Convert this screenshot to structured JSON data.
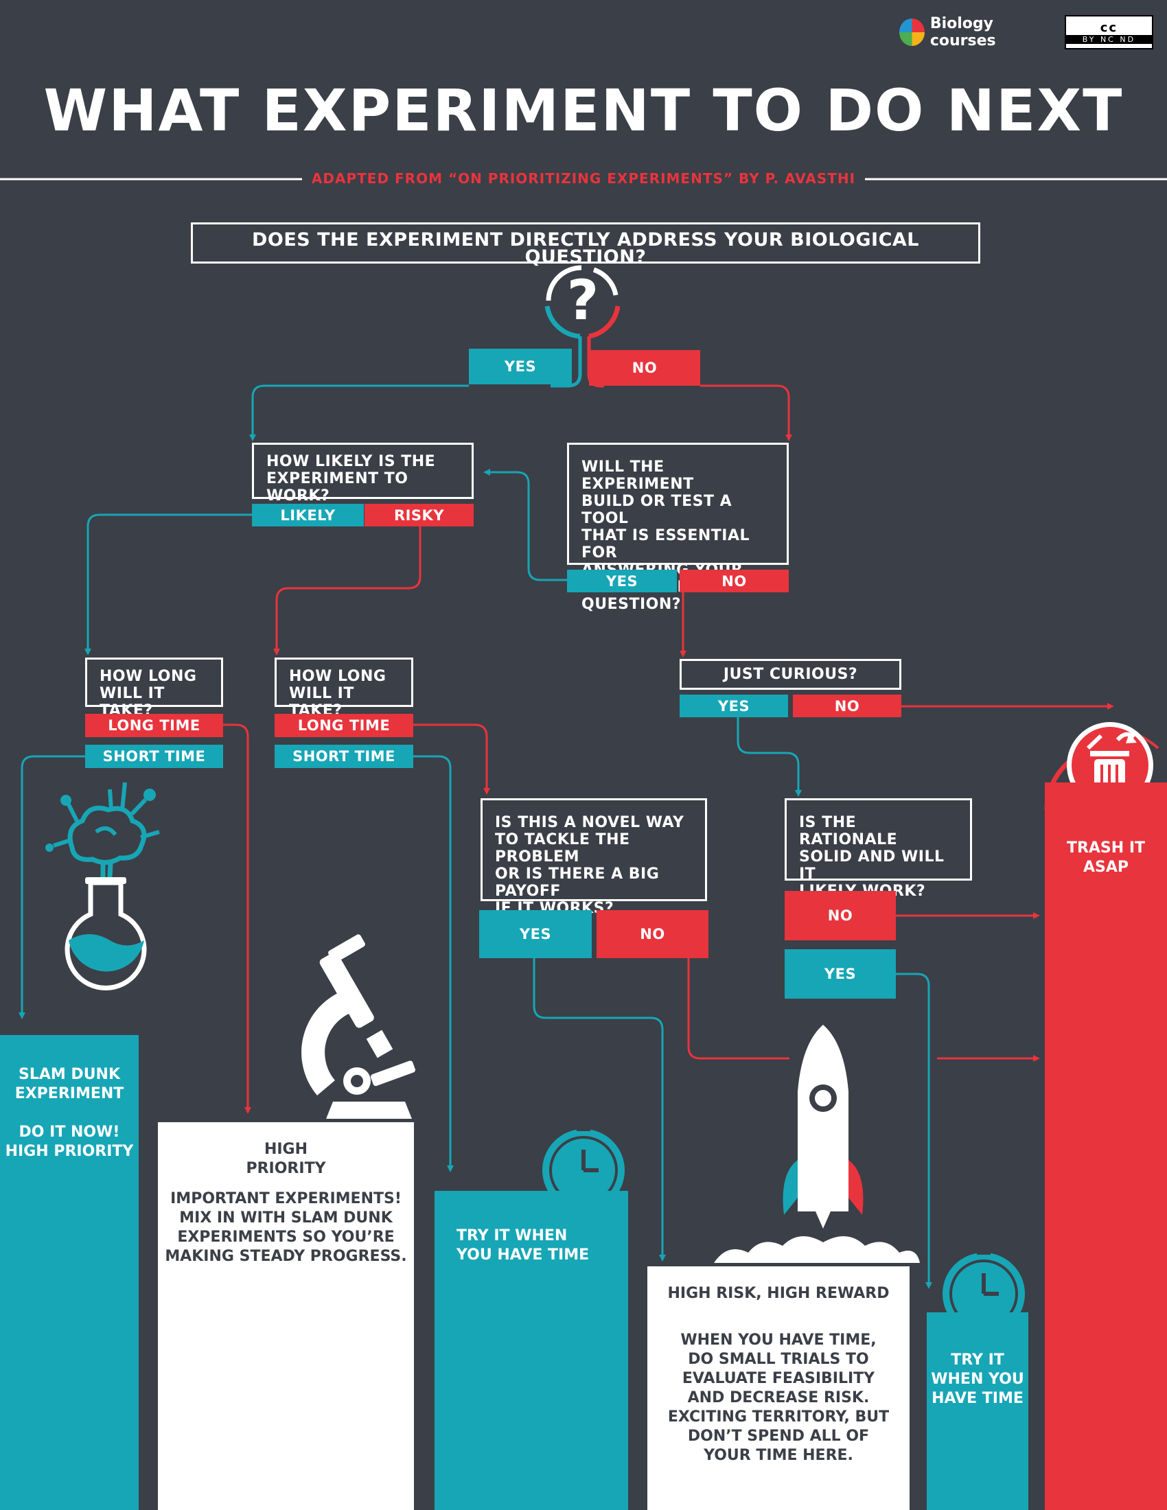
{
  "header": {
    "logo_text": "Biology courses",
    "license_symbol": "cc",
    "license_terms": "BY  NC  ND",
    "title": "WHAT EXPERIMENT TO DO NEXT",
    "subtitle": "ADAPTED FROM “ON PRIORITIZING EXPERIMENTS” BY P. AVASTHI"
  },
  "questions": {
    "main": "DOES THE EXPERIMENT DIRECTLY ADDRESS YOUR BIOLOGICAL QUESTION?",
    "likely": "HOW LIKELY IS THE\nEXPERIMENT TO WORK?",
    "tool": "WILL THE EXPERIMENT\nBUILD OR TEST A TOOL\nTHAT IS ESSENTIAL FOR\nANSWERING YOUR\nBIOLOGICAL QUESTION?",
    "howlong_1": "HOW LONG\nWILL IT TAKE?",
    "howlong_2": "HOW LONG\nWILL IT TAKE?",
    "curious": "JUST CURIOUS?",
    "novel": "IS THIS A NOVEL WAY\nTO TACKLE THE PROBLEM\nOR IS THERE A BIG PAYOFF\nIF IT WORKS?",
    "rationale": "IS THE RATIONALE\nSOLID AND WILL IT\nLIKELY WORK?"
  },
  "options": {
    "yes": "YES",
    "no": "NO",
    "likely": "LIKELY",
    "risky": "RISKY",
    "long_time": "LONG TIME",
    "short_time": "SHORT TIME"
  },
  "outcomes": {
    "slam_dunk": "SLAM DUNK\nEXPERIMENT\n\nDO IT NOW!\nHIGH PRIORITY",
    "high_priority_title": "HIGH\nPRIORITY",
    "high_priority_body": "IMPORTANT EXPERIMENTS!\nMIX IN WITH SLAM DUNK\nEXPERIMENTS SO YOU’RE\nMAKING STEADY PROGRESS.",
    "try_when_time_1": "TRY IT WHEN\nYOU HAVE TIME",
    "high_risk_title": "HIGH RISK, HIGH REWARD",
    "high_risk_body": "WHEN YOU HAVE TIME,\nDO SMALL TRIALS TO\nEVALUATE FEASIBILITY\nAND DECREASE RISK.\nEXCITING TERRITORY, BUT\nDON’T SPEND ALL OF\nYOUR TIME HERE.",
    "try_when_time_2": "TRY IT\nWHEN YOU\nHAVE TIME",
    "trash": "TRASH IT\nASAP"
  },
  "colors": {
    "background": "#3b3f47",
    "yes_teal": "#17a6b6",
    "no_red": "#e8343d",
    "white": "#ffffff"
  },
  "icons": [
    "question-mark-icon",
    "flask-icon",
    "microscope-icon",
    "clock-icon",
    "rocket-icon",
    "trash-can-icon"
  ]
}
